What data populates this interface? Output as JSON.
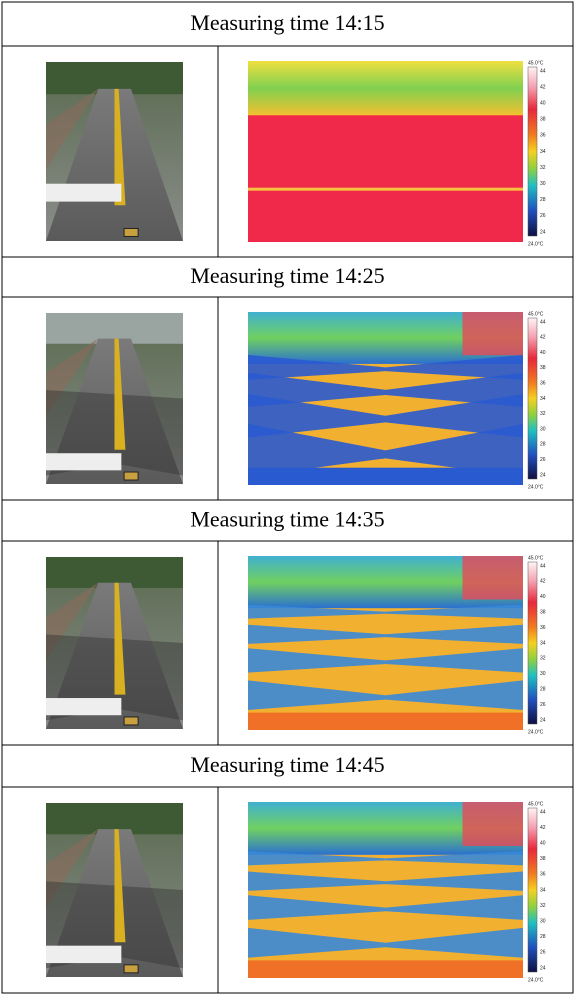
{
  "sections": [
    {
      "title": "Measuring time 14:15"
    },
    {
      "title": "Measuring time 14:25"
    },
    {
      "title": "Measuring time 14:35"
    },
    {
      "title": "Measuring time 14:45"
    }
  ],
  "thermal_scale": {
    "max": "45.0°C",
    "ticks": [
      "44",
      "42",
      "40",
      "38",
      "36",
      "34",
      "32",
      "30",
      "28",
      "26",
      "24"
    ],
    "min": "24.0°C"
  }
}
